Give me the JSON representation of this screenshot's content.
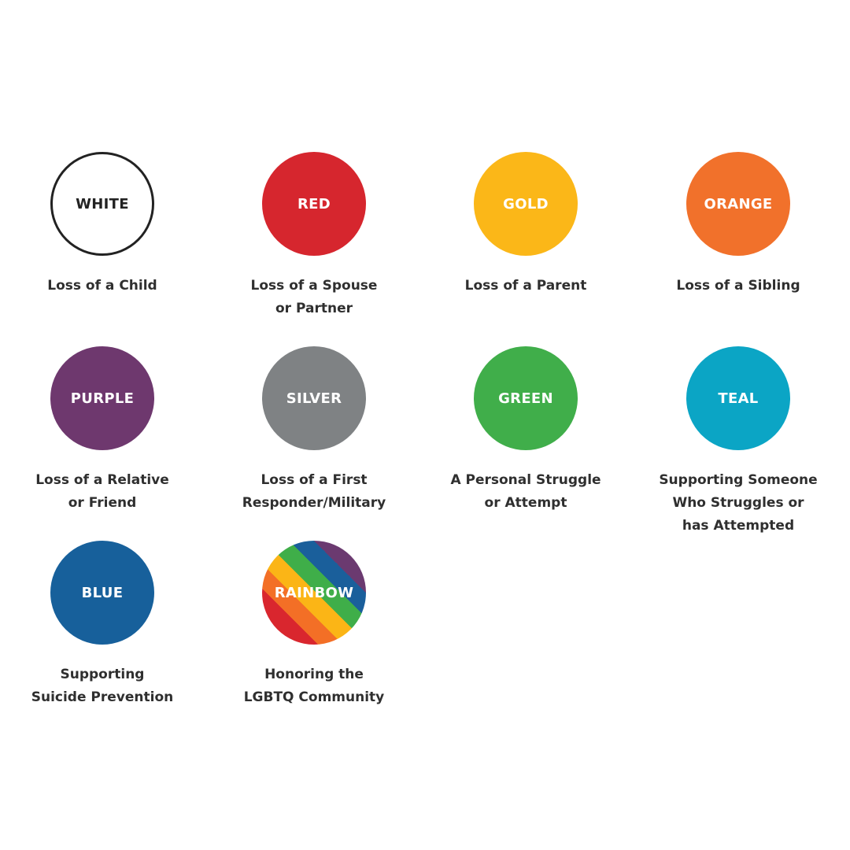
{
  "items": [
    {
      "color_name": "WHITE",
      "hex": "#ffffff",
      "description": "Loss of a Child"
    },
    {
      "color_name": "RED",
      "hex": "#d6262e",
      "description": "Loss of a Spouse\nor Partner"
    },
    {
      "color_name": "GOLD",
      "hex": "#fbb718",
      "description": "Loss of a Parent"
    },
    {
      "color_name": "ORANGE",
      "hex": "#f1712b",
      "description": "Loss of a Sibling"
    },
    {
      "color_name": "PURPLE",
      "hex": "#6e386e",
      "description": "Loss of a Relative\nor Friend"
    },
    {
      "color_name": "SILVER",
      "hex": "#7f8284",
      "description": "Loss of a First\nResponder/Military"
    },
    {
      "color_name": "GREEN",
      "hex": "#40ae4a",
      "description": "A Personal Struggle\nor Attempt"
    },
    {
      "color_name": "TEAL",
      "hex": "#0ba5c5",
      "description": "Supporting Someone\nWho Struggles or\nhas Attempted"
    },
    {
      "color_name": "BLUE",
      "hex": "#17609b",
      "description": "Supporting\nSuicide Prevention"
    },
    {
      "color_name": "RAINBOW",
      "hex": "rainbow",
      "description": "Honoring the\nLGBTQ Community"
    }
  ]
}
